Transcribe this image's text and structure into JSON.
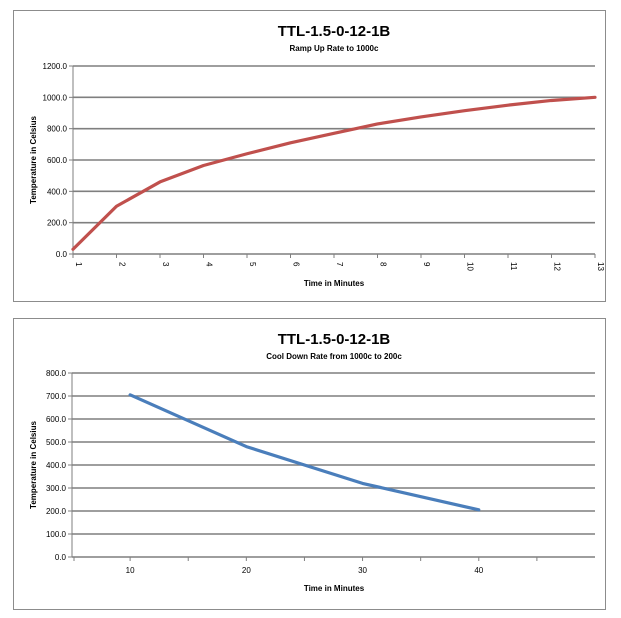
{
  "chart_data": [
    {
      "type": "line",
      "title": "TTL-1.5-0-12-1B",
      "subtitle": "Ramp Up Rate to 1000c",
      "xlabel": "Time in Minutes",
      "ylabel": "Temperature in Celsius",
      "x": [
        1,
        2,
        3,
        4,
        5,
        6,
        7,
        8,
        9,
        10,
        11,
        12,
        13
      ],
      "x_tick_labels": [
        "1",
        "2",
        "3",
        "4",
        "5",
        "6",
        "7",
        "8",
        "9",
        "10",
        "11",
        "12",
        "13"
      ],
      "y_tick_labels": [
        "0.0",
        "200.0",
        "400.0",
        "600.0",
        "800.0",
        "1000.0",
        "1200.0"
      ],
      "ylim": [
        0,
        1200
      ],
      "grid": true,
      "legend": "none",
      "series": [
        {
          "color": "#c0504d",
          "values": [
            30,
            305,
            460,
            565,
            640,
            710,
            770,
            830,
            875,
            915,
            950,
            980,
            1000
          ]
        }
      ]
    },
    {
      "type": "line",
      "title": "TTL-1.5-0-12-1B",
      "subtitle": "Cool Down Rate from 1000c to 200c",
      "xlabel": "Time in Minutes",
      "ylabel": "Temperature in Celsius",
      "x": [
        10,
        20,
        30,
        40
      ],
      "x_tick_labels": [
        "10",
        "20",
        "30",
        "40"
      ],
      "y_tick_labels": [
        "0.0",
        "100.0",
        "200.0",
        "300.0",
        "400.0",
        "500.0",
        "600.0",
        "700.0",
        "800.0"
      ],
      "ylim": [
        0,
        800
      ],
      "xlim": [
        5,
        50
      ],
      "grid": true,
      "legend": "none",
      "series": [
        {
          "color": "#4a7ebb",
          "values": [
            705,
            480,
            320,
            205
          ]
        }
      ]
    }
  ]
}
